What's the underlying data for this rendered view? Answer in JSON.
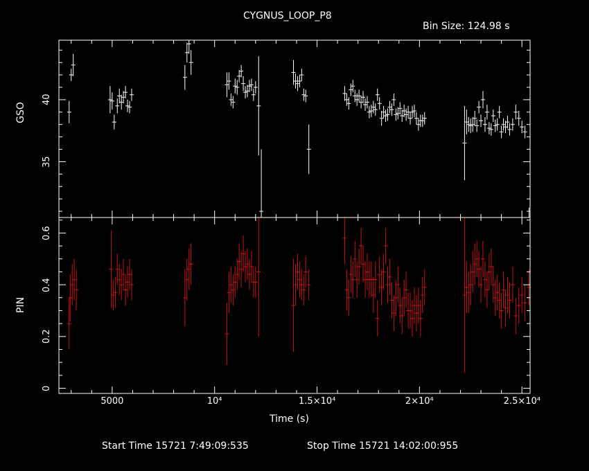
{
  "chart_data": [
    {
      "type": "scatter",
      "title": "CYGNUS_LOOP_P8",
      "annotation": "Bin Size: 124.98 s",
      "ylabel": "GSO",
      "xlabel": "Time (s)",
      "xlim": [
        2400,
        25400
      ],
      "ylim": [
        30.5,
        44.8
      ],
      "x_ticks": [
        5000,
        10000,
        15000,
        20000,
        25000
      ],
      "x_tick_labels": [
        "5000",
        "10⁴",
        "1.5×10⁴",
        "2×10⁴",
        "2.5×10⁴"
      ],
      "y_ticks": [
        35,
        40
      ],
      "y_tick_labels": [
        "35",
        "40"
      ],
      "color": "#ffffff",
      "series": [
        {
          "x": [
            2900,
            3000,
            3100,
            4900,
            5000,
            5100,
            5250,
            5350,
            5450,
            5550,
            5650,
            5750,
            5850,
            5950,
            8550,
            8650,
            8750,
            8850,
            10600,
            10700,
            10800,
            10900,
            11000,
            11100,
            11200,
            11300,
            11400,
            11500,
            11600,
            11700,
            11800,
            11900,
            12000,
            12150,
            12280,
            13850,
            13950,
            14050,
            14150,
            14250,
            14350,
            14450,
            14600,
            16350,
            16450,
            16550,
            16650,
            16750,
            16850,
            16950,
            17050,
            17150,
            17250,
            17350,
            17450,
            17550,
            17650,
            17750,
            17850,
            17950,
            18050,
            18150,
            18250,
            18350,
            18450,
            18550,
            18650,
            18750,
            18850,
            18950,
            19050,
            19150,
            19250,
            19350,
            19450,
            19550,
            19650,
            19750,
            19850,
            19950,
            20050,
            20150,
            20250,
            22200,
            22300,
            22400,
            22500,
            22600,
            22700,
            22800,
            22900,
            23000,
            23100,
            23200,
            23300,
            23400,
            23500,
            23600,
            23700,
            23800,
            23900,
            24000,
            24100,
            24200,
            24300,
            24400,
            24550,
            24700,
            24850,
            25000,
            25150,
            25350
          ],
          "y": [
            39.0,
            42.0,
            42.8,
            40.0,
            39.9,
            38.2,
            39.5,
            40.3,
            39.8,
            40.2,
            40.6,
            39.5,
            39.4,
            40.4,
            41.8,
            43.8,
            44.5,
            43.0,
            41.2,
            41.5,
            40.0,
            39.8,
            41.1,
            41.0,
            41.9,
            42.3,
            41.3,
            40.6,
            40.7,
            41.1,
            41.2,
            40.4,
            41.0,
            39.5,
            31.0,
            42.2,
            41.5,
            41.3,
            41.5,
            42.0,
            40.4,
            40.3,
            36.0,
            40.5,
            40.0,
            39.7,
            40.8,
            41.1,
            40.3,
            40.0,
            40.3,
            39.8,
            40.2,
            39.6,
            39.8,
            39.0,
            39.1,
            39.4,
            39.2,
            40.4,
            39.7,
            38.5,
            39.0,
            38.7,
            38.8,
            39.4,
            39.2,
            40.0,
            38.8,
            38.9,
            39.3,
            38.7,
            39.1,
            38.8,
            39.0,
            38.5,
            39.0,
            39.1,
            38.5,
            38.0,
            38.3,
            38.3,
            38.5,
            36.5,
            38.2,
            38.0,
            37.9,
            38.0,
            38.5,
            37.9,
            39.4,
            38.3,
            40.0,
            38.0,
            39.0,
            37.7,
            37.6,
            38.7,
            37.9,
            38.0,
            39.0,
            37.4,
            38.0,
            37.8,
            38.2,
            37.6,
            38.0,
            39.0,
            38.5,
            37.8,
            37.4,
            30.3
          ],
          "yerr": [
            0.9,
            0.5,
            0.9,
            1.1,
            0.7,
            0.6,
            0.6,
            0.6,
            0.6,
            0.5,
            0.5,
            0.5,
            0.5,
            0.5,
            1.0,
            0.8,
            0.8,
            1.0,
            1.0,
            0.7,
            0.5,
            0.5,
            0.6,
            0.6,
            0.5,
            0.5,
            0.6,
            0.5,
            0.5,
            0.5,
            0.5,
            0.5,
            0.5,
            4.0,
            5.0,
            1.0,
            0.6,
            0.6,
            0.5,
            0.5,
            0.5,
            0.5,
            2.0,
            0.6,
            0.5,
            0.5,
            0.5,
            0.5,
            0.5,
            0.5,
            0.5,
            0.5,
            0.5,
            0.5,
            0.5,
            0.5,
            0.5,
            0.5,
            0.5,
            0.5,
            0.5,
            0.6,
            0.5,
            0.5,
            0.5,
            0.5,
            0.5,
            0.5,
            0.5,
            0.5,
            0.5,
            0.5,
            0.5,
            0.5,
            0.5,
            0.5,
            0.5,
            0.5,
            0.5,
            0.5,
            0.5,
            0.5,
            0.5,
            3.0,
            1.0,
            0.6,
            0.6,
            0.6,
            0.6,
            0.5,
            0.5,
            0.5,
            0.7,
            0.6,
            0.6,
            0.5,
            0.5,
            0.5,
            0.5,
            0.5,
            0.5,
            0.5,
            0.5,
            0.5,
            0.5,
            0.5,
            0.5,
            0.6,
            0.6,
            0.5,
            0.5,
            1.0
          ]
        }
      ]
    },
    {
      "type": "scatter",
      "ylabel": "PIN",
      "xlabel": "Time (s)",
      "xlim": [
        2400,
        25400
      ],
      "ylim": [
        -0.02,
        0.66
      ],
      "y_ticks": [
        0,
        0.2,
        0.4,
        0.6
      ],
      "y_tick_labels": [
        "0",
        "0.2",
        "0.4",
        "0.6"
      ],
      "color": "#cc1111",
      "series": [
        {
          "x": [
            2900,
            2950,
            3050,
            3150,
            3250,
            4950,
            5050,
            5150,
            5250,
            5350,
            5450,
            5550,
            5650,
            5750,
            5850,
            5950,
            8550,
            8650,
            8750,
            8850,
            10600,
            10700,
            10800,
            10900,
            11000,
            11100,
            11200,
            11300,
            11400,
            11500,
            11600,
            11700,
            11800,
            11900,
            12000,
            12150,
            13850,
            13950,
            14050,
            14150,
            14250,
            14350,
            14450,
            14600,
            16350,
            16450,
            16550,
            16650,
            16750,
            16850,
            16950,
            17050,
            17150,
            17250,
            17350,
            17450,
            17550,
            17650,
            17750,
            17850,
            17950,
            18050,
            18150,
            18250,
            18350,
            18450,
            18550,
            18650,
            18750,
            18850,
            18950,
            19050,
            19150,
            19250,
            19350,
            19450,
            19550,
            19650,
            19750,
            19850,
            19950,
            20050,
            20150,
            20250,
            22200,
            22300,
            22400,
            22500,
            22600,
            22700,
            22800,
            22900,
            23000,
            23100,
            23200,
            23300,
            23400,
            23500,
            23600,
            23700,
            23800,
            23900,
            24000,
            24100,
            24200,
            24300,
            24400,
            24550,
            24700,
            24850,
            25000,
            25150,
            25350
          ],
          "y": [
            0.25,
            0.35,
            0.4,
            0.42,
            0.38,
            0.46,
            0.36,
            0.37,
            0.46,
            0.42,
            0.4,
            0.44,
            0.38,
            0.41,
            0.44,
            0.4,
            0.35,
            0.42,
            0.46,
            0.48,
            0.21,
            0.37,
            0.4,
            0.38,
            0.41,
            0.44,
            0.49,
            0.46,
            0.52,
            0.47,
            0.48,
            0.44,
            0.47,
            0.41,
            0.41,
            0.45,
            0.32,
            0.4,
            0.45,
            0.42,
            0.4,
            0.38,
            0.45,
            0.4,
            0.58,
            0.38,
            0.35,
            0.44,
            0.42,
            0.5,
            0.42,
            0.47,
            0.55,
            0.48,
            0.42,
            0.45,
            0.42,
            0.42,
            0.36,
            0.42,
            0.27,
            0.44,
            0.39,
            0.45,
            0.55,
            0.4,
            0.43,
            0.34,
            0.29,
            0.35,
            0.4,
            0.32,
            0.28,
            0.35,
            0.38,
            0.3,
            0.3,
            0.27,
            0.32,
            0.29,
            0.32,
            0.27,
            0.36,
            0.39,
            0.36,
            0.39,
            0.37,
            0.4,
            0.45,
            0.48,
            0.5,
            0.46,
            0.4,
            0.5,
            0.42,
            0.38,
            0.45,
            0.47,
            0.4,
            0.35,
            0.37,
            0.34,
            0.3,
            0.38,
            0.31,
            0.36,
            0.34,
            0.4,
            0.28,
            0.32,
            0.36,
            0.33,
            0.39
          ],
          "yerr": [
            0.1,
            0.09,
            0.08,
            0.08,
            0.08,
            0.15,
            0.06,
            0.06,
            0.06,
            0.06,
            0.06,
            0.06,
            0.06,
            0.06,
            0.06,
            0.06,
            0.11,
            0.08,
            0.08,
            0.08,
            0.12,
            0.08,
            0.07,
            0.06,
            0.06,
            0.06,
            0.07,
            0.07,
            0.07,
            0.06,
            0.06,
            0.06,
            0.06,
            0.06,
            0.06,
            0.25,
            0.18,
            0.08,
            0.07,
            0.07,
            0.06,
            0.06,
            0.06,
            0.06,
            0.1,
            0.08,
            0.07,
            0.07,
            0.07,
            0.07,
            0.07,
            0.07,
            0.07,
            0.07,
            0.07,
            0.07,
            0.07,
            0.07,
            0.07,
            0.07,
            0.07,
            0.07,
            0.07,
            0.07,
            0.07,
            0.07,
            0.07,
            0.07,
            0.07,
            0.07,
            0.07,
            0.07,
            0.07,
            0.07,
            0.07,
            0.07,
            0.07,
            0.07,
            0.07,
            0.07,
            0.07,
            0.07,
            0.07,
            0.07,
            0.3,
            0.1,
            0.08,
            0.08,
            0.08,
            0.08,
            0.07,
            0.07,
            0.07,
            0.07,
            0.07,
            0.07,
            0.07,
            0.07,
            0.07,
            0.07,
            0.07,
            0.07,
            0.07,
            0.07,
            0.07,
            0.07,
            0.07,
            0.07,
            0.07,
            0.07,
            0.07,
            0.07,
            0.07
          ]
        }
      ]
    }
  ],
  "footer": {
    "start_label": "Start Time 15721  7:49:09:535",
    "stop_label": "Stop Time 15721 14:02:00:955"
  }
}
